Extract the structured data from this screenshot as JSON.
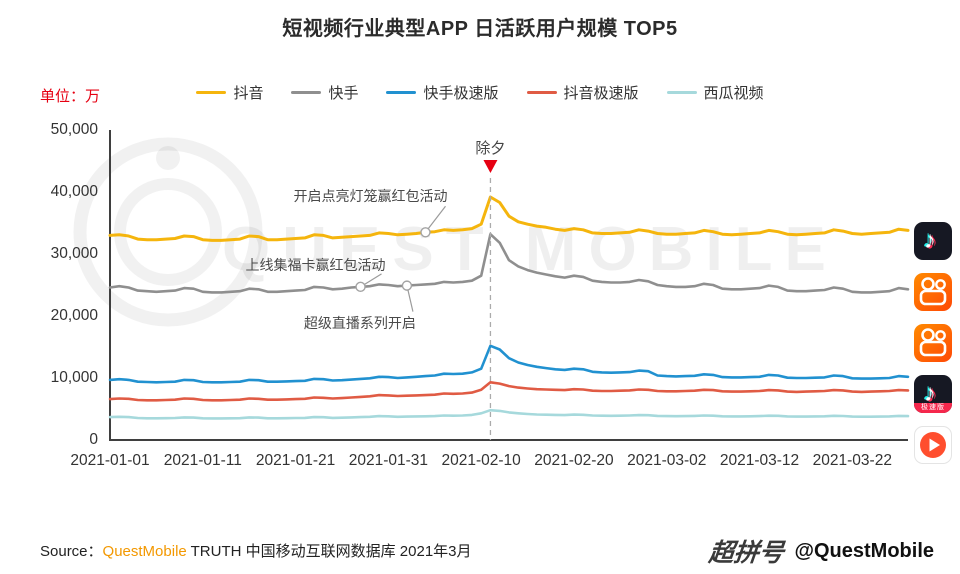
{
  "header": {
    "title": "短视频行业典型APP 日活跃用户规模 TOP5"
  },
  "chart_data": {
    "type": "line",
    "unit_label": "单位：万",
    "ylim": [
      0,
      50000
    ],
    "y_ticks": [
      "0",
      "10,000",
      "20,000",
      "30,000",
      "40,000",
      "50,000"
    ],
    "y_tick_values": [
      0,
      10000,
      20000,
      30000,
      40000,
      50000
    ],
    "x_ticks": [
      "2021-01-01",
      "2021-01-11",
      "2021-01-21",
      "2021-01-31",
      "2021-02-10",
      "2021-02-20",
      "2021-03-02",
      "2021-03-12",
      "2021-03-22"
    ],
    "x_tick_indices": [
      0,
      10,
      20,
      30,
      40,
      50,
      60,
      70,
      80
    ],
    "x_range": "2021-01-01 to 2021-03-28, daily",
    "grid": false,
    "legend_position": "top",
    "series": [
      {
        "name": "抖音",
        "color": "#F5B50D",
        "values": [
          33000,
          33100,
          32900,
          32400,
          32300,
          32300,
          32400,
          32500,
          32900,
          32800,
          32300,
          32200,
          32200,
          32300,
          32400,
          32900,
          32800,
          32300,
          32300,
          32400,
          32500,
          32600,
          33100,
          33000,
          32600,
          32700,
          32800,
          32900,
          33000,
          33400,
          33300,
          33100,
          33200,
          33300,
          33500,
          33600,
          33900,
          33800,
          33900,
          34100,
          34800,
          39200,
          38300,
          36100,
          35200,
          34800,
          34500,
          34300,
          34000,
          33800,
          34100,
          33900,
          33400,
          33300,
          33300,
          33400,
          33500,
          33900,
          33700,
          33300,
          33200,
          33200,
          33300,
          33400,
          33800,
          33600,
          33200,
          33100,
          33200,
          33300,
          33400,
          33800,
          33600,
          33200,
          33100,
          33200,
          33300,
          33400,
          33900,
          33700,
          33300,
          33200,
          33300,
          33400,
          33500,
          34000,
          33800
        ]
      },
      {
        "name": "快手",
        "color": "#8F8F8F",
        "values": [
          24600,
          24800,
          24600,
          24100,
          24000,
          23900,
          24000,
          24100,
          24500,
          24400,
          23900,
          23800,
          23800,
          23900,
          24000,
          24400,
          24300,
          23900,
          23900,
          24000,
          24100,
          24200,
          24700,
          24600,
          24300,
          24400,
          24600,
          24700,
          24800,
          25100,
          25000,
          24800,
          24900,
          25000,
          25100,
          25200,
          25500,
          25400,
          25500,
          25700,
          26500,
          33200,
          31800,
          29000,
          28000,
          27400,
          27000,
          26700,
          26400,
          26200,
          26500,
          26300,
          25700,
          25500,
          25400,
          25400,
          25500,
          25800,
          25600,
          25000,
          24800,
          24700,
          24700,
          24800,
          25200,
          25000,
          24400,
          24300,
          24300,
          24400,
          24500,
          24900,
          24700,
          24100,
          24000,
          24000,
          24100,
          24200,
          24600,
          24400,
          23900,
          23800,
          23800,
          23900,
          24000,
          24500,
          24300
        ]
      },
      {
        "name": "快手极速版",
        "color": "#2191D0",
        "values": [
          9700,
          9800,
          9700,
          9400,
          9350,
          9300,
          9350,
          9400,
          9700,
          9650,
          9350,
          9300,
          9300,
          9350,
          9400,
          9700,
          9650,
          9400,
          9400,
          9450,
          9500,
          9550,
          9850,
          9800,
          9600,
          9650,
          9750,
          9850,
          9950,
          10200,
          10150,
          10000,
          10100,
          10200,
          10300,
          10400,
          10700,
          10650,
          10700,
          10900,
          11500,
          15200,
          14600,
          13200,
          12500,
          12100,
          11800,
          11600,
          11400,
          11300,
          11500,
          11400,
          11000,
          10900,
          10850,
          10900,
          10950,
          11200,
          11100,
          10400,
          10300,
          10250,
          10300,
          10350,
          10600,
          10500,
          10150,
          10100,
          10100,
          10150,
          10200,
          10500,
          10400,
          10050,
          10000,
          10000,
          10050,
          10100,
          10400,
          10300,
          9950,
          9900,
          9900,
          9950,
          10000,
          10300,
          10200
        ]
      },
      {
        "name": "抖音极速版",
        "color": "#E05B44",
        "values": [
          6600,
          6700,
          6650,
          6450,
          6400,
          6400,
          6450,
          6500,
          6700,
          6650,
          6450,
          6400,
          6400,
          6450,
          6500,
          6700,
          6650,
          6500,
          6500,
          6550,
          6600,
          6650,
          6850,
          6800,
          6700,
          6750,
          6850,
          6950,
          7050,
          7250,
          7200,
          7100,
          7150,
          7200,
          7250,
          7300,
          7500,
          7450,
          7500,
          7650,
          8100,
          9300,
          9100,
          8700,
          8450,
          8300,
          8200,
          8150,
          8100,
          8050,
          8200,
          8150,
          7950,
          7900,
          7900,
          7950,
          8000,
          8150,
          8100,
          7900,
          7850,
          7850,
          7900,
          7950,
          8100,
          8050,
          7850,
          7800,
          7800,
          7850,
          7900,
          8050,
          8000,
          7800,
          7750,
          7800,
          7850,
          7900,
          8050,
          8000,
          7800,
          7750,
          7800,
          7850,
          7900,
          8050,
          8000
        ]
      },
      {
        "name": "西瓜视频",
        "color": "#A6D9DC",
        "values": [
          3700,
          3750,
          3700,
          3550,
          3500,
          3500,
          3520,
          3550,
          3650,
          3620,
          3500,
          3480,
          3480,
          3500,
          3520,
          3650,
          3620,
          3500,
          3500,
          3520,
          3550,
          3570,
          3700,
          3670,
          3570,
          3600,
          3650,
          3700,
          3750,
          3850,
          3820,
          3750,
          3780,
          3800,
          3830,
          3850,
          3950,
          3920,
          3950,
          4050,
          4300,
          4800,
          4700,
          4450,
          4300,
          4200,
          4120,
          4080,
          4050,
          4020,
          4100,
          4070,
          3950,
          3920,
          3900,
          3920,
          3950,
          4020,
          4000,
          3880,
          3850,
          3840,
          3850,
          3880,
          3950,
          3920,
          3820,
          3800,
          3800,
          3820,
          3850,
          3920,
          3900,
          3800,
          3780,
          3780,
          3800,
          3820,
          3900,
          3870,
          3780,
          3760,
          3760,
          3780,
          3800,
          3880,
          3850
        ]
      }
    ],
    "annotations": [
      {
        "id": "chuxi",
        "label": "除夕",
        "date_index": 41
      },
      {
        "id": "lantern",
        "label": "开启点亮灯笼赢红包活动",
        "series": "抖音",
        "date_index": 34,
        "value": 33500
      },
      {
        "id": "jifuka",
        "label": "上线集福卡赢红包活动",
        "series": "快手",
        "date_index": 27,
        "value": 24700
      },
      {
        "id": "zhibo",
        "label": "超级直播系列开启",
        "series": "快手",
        "date_index": 32,
        "value": 24900
      }
    ]
  },
  "watermark": {
    "text": "QUEST MOBILE"
  },
  "right_icons": [
    {
      "name": "douyin",
      "label": "抖音"
    },
    {
      "name": "kuaishou",
      "label": "快手"
    },
    {
      "name": "kuaishou-speed",
      "label": "快手极速版"
    },
    {
      "name": "douyin-speed",
      "label": "抖音极速版",
      "ribbon": "极速版"
    },
    {
      "name": "xigua",
      "label": "西瓜视频"
    }
  ],
  "footer": {
    "source_prefix": "Source：",
    "source_brand": "QuestMobile",
    "source_rest": " TRUTH 中国移动互联网数据库 2021年3月",
    "brand_color": "#F39800",
    "logo_text": "超拼号",
    "handle": "@QuestMobile"
  }
}
